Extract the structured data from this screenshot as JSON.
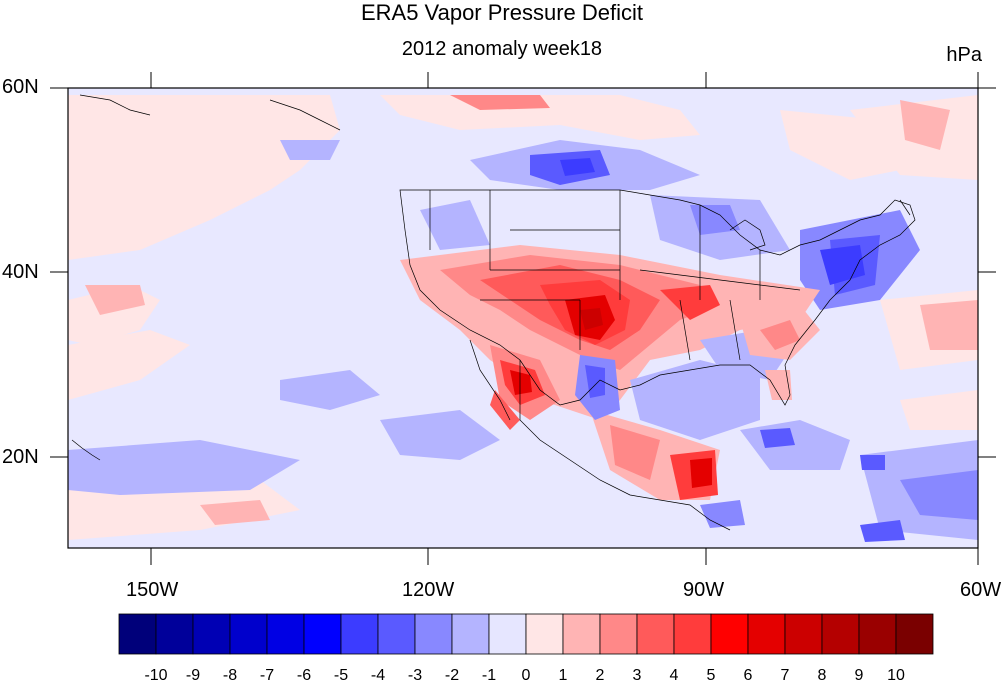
{
  "title": "ERA5 Vapor Pressure Deficit",
  "subtitle": "2012 anomaly week18",
  "units": "hPa",
  "lat_labels": [
    "60N",
    "40N",
    "20N"
  ],
  "lon_labels": [
    "150W",
    "120W",
    "90W",
    "60W"
  ],
  "colorbar": {
    "labels": [
      "-10",
      "-9",
      "-8",
      "-7",
      "-6",
      "-5",
      "-4",
      "-3",
      "-2",
      "-1",
      "0",
      "1",
      "2",
      "3",
      "4",
      "5",
      "6",
      "7",
      "8",
      "9",
      "10"
    ],
    "colors": [
      "#00007a",
      "#00009a",
      "#0000b4",
      "#0000cc",
      "#0000e4",
      "#0000ff",
      "#3c3cff",
      "#5a5aff",
      "#8888ff",
      "#b4b4ff",
      "#e6e6ff",
      "#ffe6e6",
      "#ffb4b4",
      "#ff8888",
      "#ff5a5a",
      "#ff3c3c",
      "#ff0000",
      "#e40000",
      "#cc0000",
      "#b40000",
      "#9a0000",
      "#7a0000"
    ]
  },
  "colors": {
    "background_anomaly": "#e8e8ff",
    "land_outline": "#000000"
  }
}
